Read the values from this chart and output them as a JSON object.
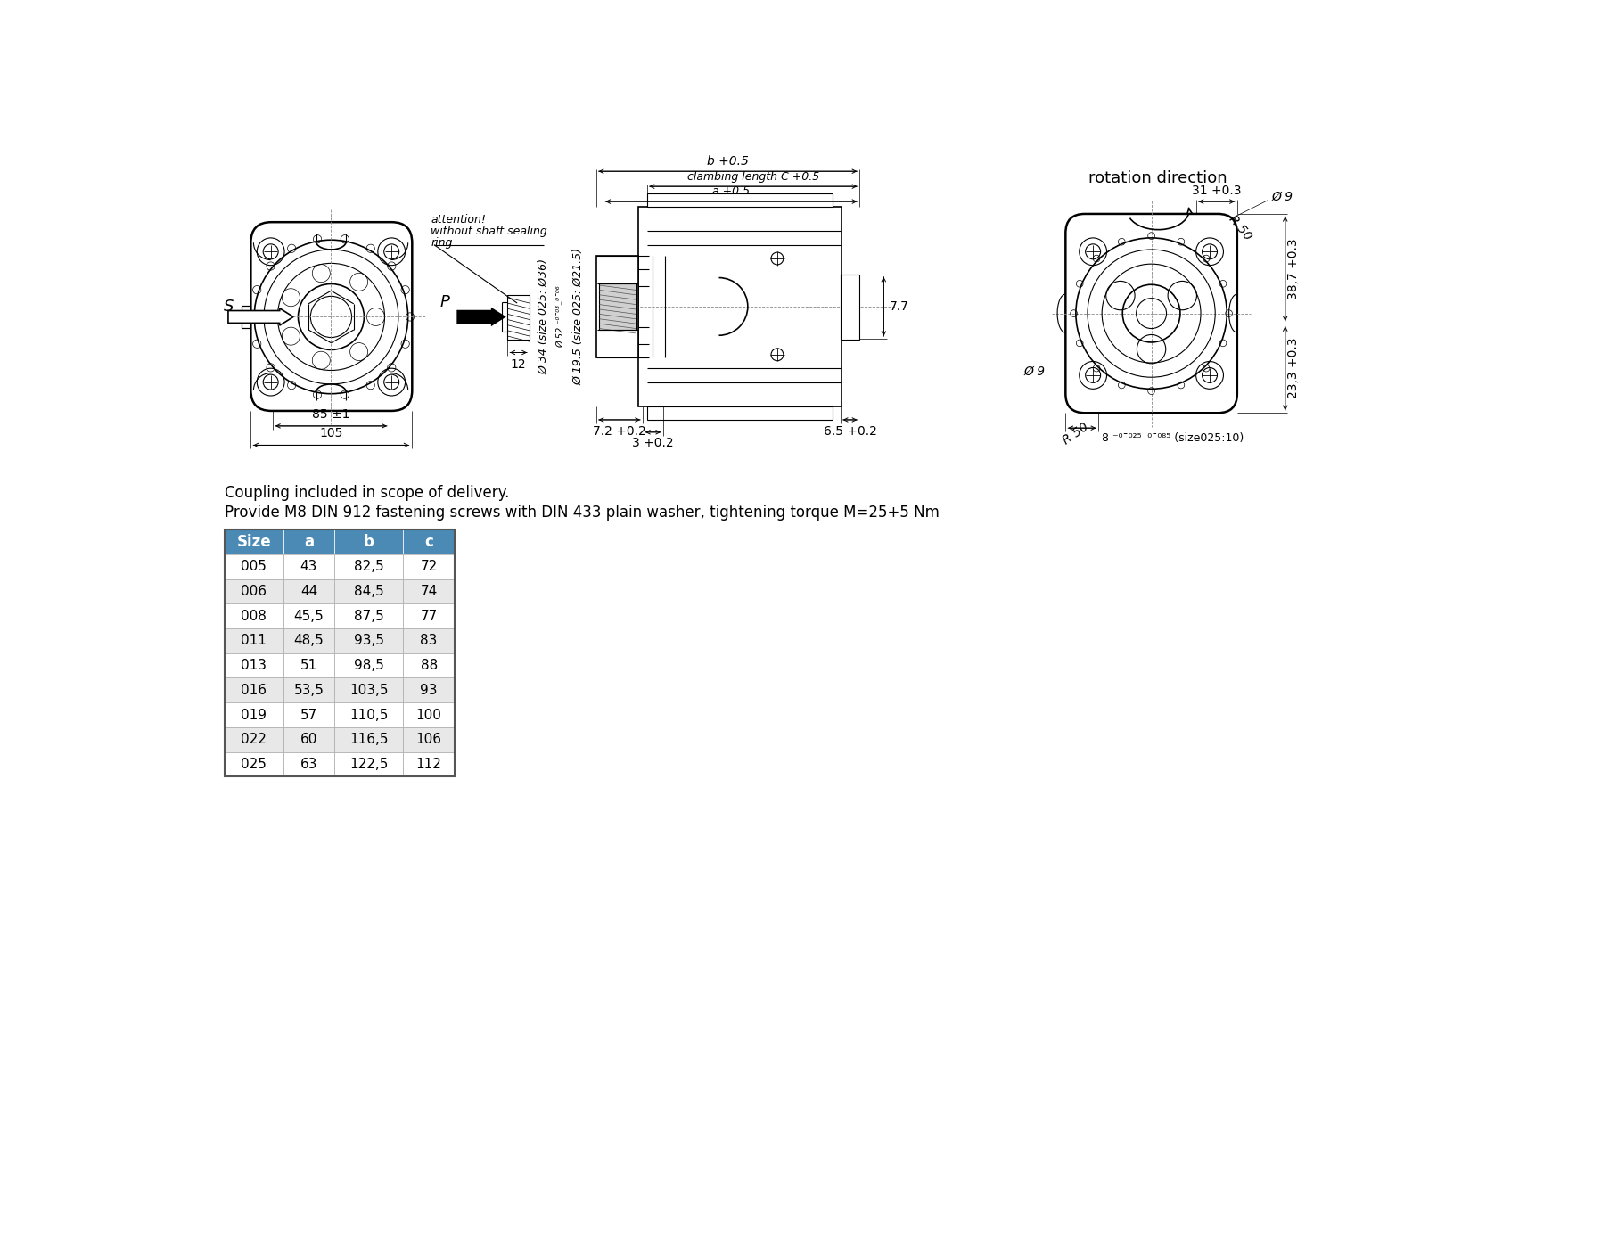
{
  "bg_color": "#ffffff",
  "rotation_direction_text": "rotation direction",
  "note_line1": "Coupling included in scope of delivery.",
  "note_line2": "Provide M8 DIN 912 fastening screws with DIN 433 plain washer, tightening torque M=25+5 Nm",
  "table_headers": [
    "Size",
    "a",
    "b",
    "c"
  ],
  "table_data": [
    [
      "005",
      "43",
      "82,5",
      "72"
    ],
    [
      "006",
      "44",
      "84,5",
      "74"
    ],
    [
      "008",
      "45,5",
      "87,5",
      "77"
    ],
    [
      "011",
      "48,5",
      "93,5",
      "83"
    ],
    [
      "013",
      "51",
      "98,5",
      "88"
    ],
    [
      "016",
      "53,5",
      "103,5",
      "93"
    ],
    [
      "019",
      "57",
      "110,5",
      "100"
    ],
    [
      "022",
      "60",
      "116,5",
      "106"
    ],
    [
      "025",
      "63",
      "122,5",
      "112"
    ]
  ],
  "table_header_bg": "#4a8ab5",
  "table_header_fg": "#ffffff",
  "table_row_even_bg": "#e8e8e8",
  "table_row_odd_bg": "#ffffff",
  "attention_text": [
    "attention!",
    "without shaft sealing",
    "ring"
  ],
  "dim_b": "b +0.5",
  "dim_clambing": "clambing length C +0.5",
  "dim_a": "a +0.5",
  "dim_34": "Ø 34 (size 025: Ø36)",
  "dim_52": "Ø 52 ⁻⁰ˉ⁰³₋⁰ˉ⁰⁶",
  "dim_19_5": "Ø 19.5 (size 025: Ø21.5)",
  "dim_12": "12",
  "dim_7_2": "7.2 +0.2",
  "dim_3": "3 +0.2",
  "dim_6_5": "6.5 +0.2",
  "dim_7_7": "7.7",
  "dim_85": "85 ±1",
  "dim_105": "105",
  "dim_31": "31 +0.3",
  "dim_R50_top": "R 50",
  "dim_phi9": "Ø 9",
  "dim_38_7": "38,7 +0.3",
  "dim_23_3": "23,3 +0.3",
  "dim_R50_bot": "R 50",
  "dim_8": "8 ⁻⁰ˉ⁰²⁵₋⁰ˉ⁰⁸⁵ (size025:10)"
}
